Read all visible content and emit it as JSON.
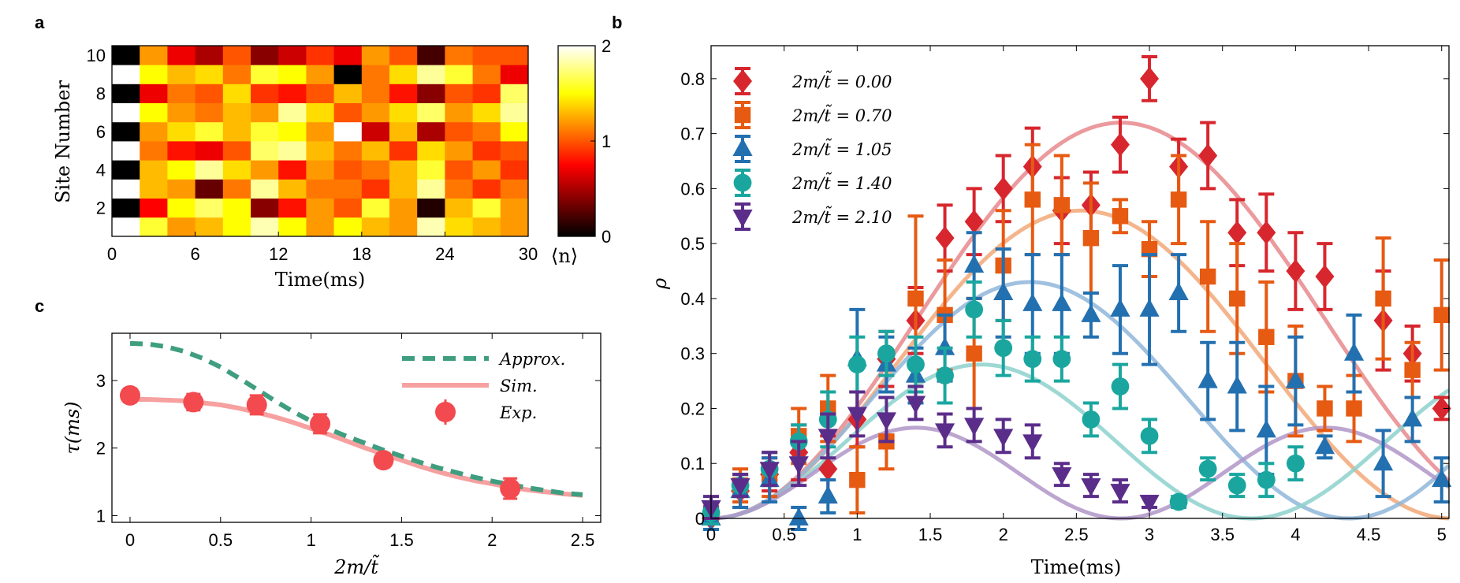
{
  "panels": {
    "a": "a",
    "b": "b",
    "c": "c"
  },
  "chart_data": [
    {
      "id": "a",
      "type": "heatmap",
      "xlabel": "Time(ms)",
      "ylabel": "Site Number",
      "xlim": [
        0,
        30
      ],
      "ylim": [
        0.5,
        10.5
      ],
      "xticks": [
        0,
        6,
        12,
        18,
        24,
        30
      ],
      "yticks": [
        2,
        4,
        6,
        8,
        10
      ],
      "colorbar": {
        "label": "⟨n⟩",
        "min": 0,
        "max": 2,
        "ticks": [
          0,
          1,
          2
        ]
      },
      "time_bins": [
        0,
        2,
        4,
        6,
        8,
        10,
        12,
        14,
        16,
        18,
        20,
        22,
        24,
        26,
        28
      ],
      "sites": [
        1,
        2,
        3,
        4,
        5,
        6,
        7,
        8,
        9,
        10
      ],
      "values": [
        [
          2.0,
          1.6,
          1.2,
          1.3,
          1.5,
          1.85,
          1.5,
          1.2,
          1.5,
          1.3,
          1.2,
          1.85,
          1.4,
          1.3,
          1.2
        ],
        [
          0.0,
          0.75,
          1.5,
          1.7,
          1.5,
          0.4,
          0.8,
          1.2,
          1.0,
          1.6,
          1.2,
          0.1,
          1.3,
          1.6,
          1.2
        ],
        [
          2.0,
          1.3,
          1.2,
          0.3,
          1.1,
          1.8,
          1.3,
          1.1,
          1.1,
          0.9,
          1.3,
          1.8,
          1.1,
          0.9,
          1.1
        ],
        [
          0.0,
          1.3,
          1.5,
          1.8,
          1.4,
          1.2,
          0.8,
          1.2,
          1.0,
          1.1,
          1.3,
          1.6,
          1.0,
          1.2,
          0.9
        ],
        [
          2.0,
          1.1,
          0.8,
          0.7,
          1.0,
          1.7,
          1.8,
          1.3,
          1.1,
          1.3,
          0.9,
          1.4,
          1.2,
          0.9,
          1.0
        ],
        [
          0.0,
          1.2,
          1.4,
          1.6,
          1.3,
          1.6,
          1.5,
          1.2,
          2.0,
          0.6,
          1.3,
          0.5,
          1.0,
          1.1,
          1.5
        ],
        [
          2.0,
          1.5,
          1.2,
          1.1,
          1.3,
          1.2,
          1.8,
          1.4,
          1.0,
          1.2,
          1.4,
          1.7,
          1.2,
          1.4,
          1.8
        ],
        [
          0.0,
          0.7,
          1.1,
          1.0,
          1.4,
          0.9,
          0.8,
          1.0,
          1.3,
          1.1,
          0.8,
          0.4,
          1.0,
          0.9,
          1.7
        ],
        [
          2.0,
          1.5,
          1.3,
          1.4,
          1.1,
          1.6,
          1.5,
          1.2,
          0.0,
          1.1,
          1.4,
          1.8,
          1.6,
          1.1,
          0.7
        ],
        [
          0.0,
          1.2,
          0.7,
          0.5,
          1.0,
          0.4,
          0.6,
          0.9,
          0.7,
          1.2,
          1.0,
          0.2,
          1.1,
          1.0,
          1.0
        ]
      ]
    },
    {
      "id": "b",
      "type": "scatter",
      "xlabel": "Time(ms)",
      "ylabel": "ρ",
      "xlim": [
        0,
        5.05
      ],
      "ylim": [
        0,
        0.86
      ],
      "xticks": [
        0,
        0.5,
        1,
        1.5,
        2,
        2.5,
        3,
        3.5,
        4,
        4.5,
        5
      ],
      "yticks": [
        0,
        0.1,
        0.2,
        0.3,
        0.4,
        0.5,
        0.6,
        0.7,
        0.8
      ],
      "legend_position": "top-left",
      "series": [
        {
          "name": "2m/t̃ = 0.00",
          "marker": "diamond",
          "color": "#d7262d",
          "fit_color": "#e8888c",
          "fit_amplitude": 0.72,
          "fit_omega": 0.56,
          "points": [
            [
              0,
              0
            ],
            [
              0.2,
              0.05
            ],
            [
              0.4,
              0.08
            ],
            [
              0.6,
              0.12
            ],
            [
              0.8,
              0.09
            ],
            [
              1.0,
              0.18
            ],
            [
              1.2,
              0.29
            ],
            [
              1.4,
              0.36
            ],
            [
              1.6,
              0.51
            ],
            [
              1.8,
              0.54
            ],
            [
              2.0,
              0.6
            ],
            [
              2.2,
              0.64
            ],
            [
              2.4,
              0.56
            ],
            [
              2.6,
              0.57
            ],
            [
              2.8,
              0.68
            ],
            [
              3.0,
              0.8
            ],
            [
              3.2,
              0.64
            ],
            [
              3.4,
              0.66
            ],
            [
              3.6,
              0.52
            ],
            [
              3.8,
              0.52
            ],
            [
              4.0,
              0.45
            ],
            [
              4.2,
              0.44
            ],
            [
              4.6,
              0.36
            ],
            [
              4.8,
              0.3
            ],
            [
              5.0,
              0.2
            ]
          ],
          "errors": [
            0.02,
            0.03,
            0.03,
            0.05,
            0.06,
            0.05,
            0.05,
            0.06,
            0.06,
            0.06,
            0.06,
            0.07,
            0.06,
            0.06,
            0.05,
            0.04,
            0.05,
            0.06,
            0.06,
            0.07,
            0.07,
            0.06,
            0.09,
            0.05,
            0.02
          ]
        },
        {
          "name": "2m/t̃ = 0.70",
          "marker": "square",
          "color": "#e65a12",
          "fit_color": "#f2a878",
          "fit_amplitude": 0.56,
          "fit_omega": 0.62,
          "points": [
            [
              0,
              0.01
            ],
            [
              0.2,
              0.06
            ],
            [
              0.4,
              0.08
            ],
            [
              0.6,
              0.15
            ],
            [
              0.8,
              0.2
            ],
            [
              1.0,
              0.07
            ],
            [
              1.2,
              0.14
            ],
            [
              1.4,
              0.4
            ],
            [
              1.6,
              0.37
            ],
            [
              1.8,
              0.3
            ],
            [
              2.0,
              0.46
            ],
            [
              2.2,
              0.58
            ],
            [
              2.4,
              0.57
            ],
            [
              2.6,
              0.51
            ],
            [
              2.8,
              0.55
            ],
            [
              3.0,
              0.49
            ],
            [
              3.2,
              0.58
            ],
            [
              3.4,
              0.44
            ],
            [
              3.6,
              0.4
            ],
            [
              3.8,
              0.33
            ],
            [
              4.0,
              0.25
            ],
            [
              4.2,
              0.2
            ],
            [
              4.4,
              0.2
            ],
            [
              4.6,
              0.4
            ],
            [
              4.8,
              0.27
            ],
            [
              5.0,
              0.37
            ]
          ],
          "errors": [
            0.02,
            0.03,
            0.04,
            0.05,
            0.06,
            0.06,
            0.05,
            0.15,
            0.1,
            0.1,
            0.1,
            0.1,
            0.09,
            0.1,
            0.03,
            0.05,
            0.08,
            0.1,
            0.1,
            0.1,
            0.1,
            0.04,
            0.06,
            0.11,
            0.05,
            0.1
          ]
        },
        {
          "name": "2m/t̃ = 1.05",
          "marker": "triangle-up",
          "color": "#2370b0",
          "fit_color": "#8fb6d9",
          "fit_amplitude": 0.43,
          "fit_omega": 0.72,
          "points": [
            [
              0,
              0
            ],
            [
              0.2,
              0.05
            ],
            [
              0.4,
              0.07
            ],
            [
              0.6,
              0
            ],
            [
              0.8,
              0.04
            ],
            [
              1.0,
              0.29
            ],
            [
              1.2,
              0.28
            ],
            [
              1.4,
              0.26
            ],
            [
              1.6,
              0.31
            ],
            [
              1.8,
              0.46
            ],
            [
              2.0,
              0.41
            ],
            [
              2.2,
              0.39
            ],
            [
              2.4,
              0.39
            ],
            [
              2.6,
              0.37
            ],
            [
              2.8,
              0.38
            ],
            [
              3.0,
              0.38
            ],
            [
              3.2,
              0.41
            ],
            [
              3.4,
              0.25
            ],
            [
              3.6,
              0.24
            ],
            [
              3.8,
              0.16
            ],
            [
              4.0,
              0.25
            ],
            [
              4.2,
              0.13
            ],
            [
              4.4,
              0.3
            ],
            [
              4.6,
              0.1
            ],
            [
              4.8,
              0.18
            ],
            [
              5.0,
              0.07
            ]
          ],
          "errors": [
            0.02,
            0.03,
            0.04,
            0.02,
            0.03,
            0.09,
            0.05,
            0.05,
            0.06,
            0.06,
            0.08,
            0.09,
            0.09,
            0.04,
            0.08,
            0.1,
            0.07,
            0.07,
            0.08,
            0.08,
            0.08,
            0.02,
            0.07,
            0.06,
            0.04,
            0.04
          ]
        },
        {
          "name": "2m/t̃ = 1.40",
          "marker": "circle",
          "color": "#1aa69f",
          "fit_color": "#8dd1cd",
          "fit_amplitude": 0.28,
          "fit_omega": 0.85,
          "points": [
            [
              0,
              0.01
            ],
            [
              0.2,
              0.06
            ],
            [
              0.4,
              0.09
            ],
            [
              0.6,
              0.14
            ],
            [
              0.8,
              0.18
            ],
            [
              1.0,
              0.28
            ],
            [
              1.2,
              0.3
            ],
            [
              1.4,
              0.28
            ],
            [
              1.6,
              0.26
            ],
            [
              1.8,
              0.38
            ],
            [
              2.0,
              0.31
            ],
            [
              2.2,
              0.29
            ],
            [
              2.4,
              0.29
            ],
            [
              2.6,
              0.18
            ],
            [
              2.8,
              0.24
            ],
            [
              3.0,
              0.15
            ],
            [
              3.2,
              0.03
            ],
            [
              3.4,
              0.09
            ],
            [
              3.6,
              0.06
            ],
            [
              3.8,
              0.07
            ],
            [
              4.0,
              0.1
            ]
          ],
          "errors": [
            0.02,
            0.02,
            0.03,
            0.03,
            0.05,
            0.05,
            0.04,
            0.05,
            0.05,
            0.05,
            0.05,
            0.04,
            0.04,
            0.03,
            0.04,
            0.03,
            0.01,
            0.02,
            0.02,
            0.03,
            0.03
          ]
        },
        {
          "name": "2m/t̃ = 2.10",
          "marker": "triangle-down",
          "color": "#5b2d8a",
          "fit_color": "#b096c8",
          "fit_amplitude": 0.165,
          "fit_omega": 1.12,
          "points": [
            [
              0,
              0.02
            ],
            [
              0.2,
              0.06
            ],
            [
              0.4,
              0.09
            ],
            [
              0.6,
              0.1
            ],
            [
              0.8,
              0.15
            ],
            [
              1.0,
              0.19
            ],
            [
              1.2,
              0.18
            ],
            [
              1.4,
              0.21
            ],
            [
              1.6,
              0.16
            ],
            [
              1.8,
              0.17
            ],
            [
              2.0,
              0.15
            ],
            [
              2.2,
              0.14
            ],
            [
              2.4,
              0.08
            ],
            [
              2.6,
              0.06
            ],
            [
              2.8,
              0.05
            ],
            [
              3.0,
              0.03
            ]
          ],
          "errors": [
            0.02,
            0.02,
            0.03,
            0.04,
            0.04,
            0.04,
            0.04,
            0.03,
            0.03,
            0.03,
            0.03,
            0.03,
            0.02,
            0.02,
            0.02,
            0.01
          ]
        }
      ]
    },
    {
      "id": "c",
      "type": "line",
      "xlabel": "2m/t̃",
      "ylabel": "τ(ms)",
      "xlim": [
        -0.1,
        2.6
      ],
      "ylim": [
        0.9,
        3.7
      ],
      "xticks": [
        0,
        0.5,
        1,
        1.5,
        2,
        2.5
      ],
      "yticks": [
        1,
        2,
        3
      ],
      "legend_position": "top-right",
      "series": [
        {
          "name": "Approx.",
          "style": "dashed",
          "color": "#3f9e80",
          "x": [
            0,
            0.1,
            0.2,
            0.3,
            0.4,
            0.5,
            0.6,
            0.7,
            0.8,
            0.9,
            1.0,
            1.1,
            1.2,
            1.3,
            1.4,
            1.5,
            1.6,
            1.7,
            1.8,
            1.9,
            2.0,
            2.1,
            2.2,
            2.3,
            2.4,
            2.5
          ],
          "y": [
            3.55,
            3.54,
            3.5,
            3.43,
            3.33,
            3.2,
            3.04,
            2.87,
            2.7,
            2.54,
            2.4,
            2.28,
            2.17,
            2.07,
            1.97,
            1.88,
            1.79,
            1.71,
            1.64,
            1.57,
            1.51,
            1.46,
            1.41,
            1.37,
            1.33,
            1.31
          ]
        },
        {
          "name": "Sim.",
          "style": "solid",
          "color": "#f7a0a0",
          "x": [
            0,
            0.1,
            0.2,
            0.3,
            0.4,
            0.5,
            0.6,
            0.7,
            0.8,
            0.9,
            1.0,
            1.1,
            1.2,
            1.3,
            1.4,
            1.5,
            1.6,
            1.7,
            1.8,
            1.9,
            2.0,
            2.1,
            2.2,
            2.3,
            2.4,
            2.5
          ],
          "y": [
            2.72,
            2.72,
            2.71,
            2.7,
            2.67,
            2.64,
            2.59,
            2.53,
            2.46,
            2.38,
            2.29,
            2.2,
            2.1,
            2.0,
            1.91,
            1.82,
            1.73,
            1.65,
            1.58,
            1.52,
            1.47,
            1.42,
            1.38,
            1.35,
            1.32,
            1.3
          ]
        },
        {
          "name": "Exp.",
          "style": "markers",
          "color": "#f24a4e",
          "x": [
            0,
            0.35,
            0.7,
            1.05,
            1.4,
            2.1
          ],
          "y": [
            2.78,
            2.68,
            2.64,
            2.36,
            1.82,
            1.4
          ],
          "errors": [
            0.1,
            0.12,
            0.14,
            0.14,
            0.1,
            0.15
          ]
        }
      ]
    }
  ]
}
